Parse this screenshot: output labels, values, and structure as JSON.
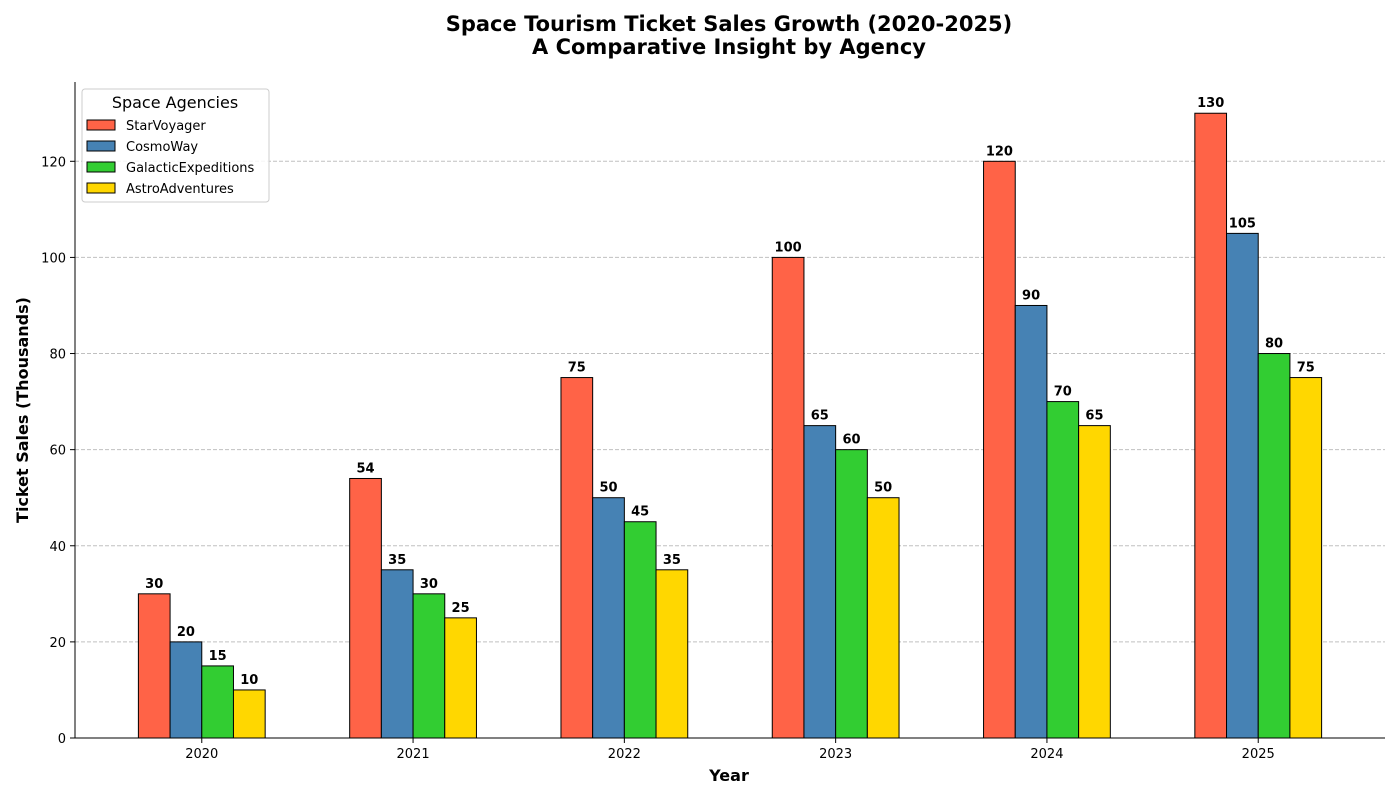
{
  "chart_data": {
    "type": "bar",
    "title": "Space Tourism Ticket Sales Growth (2020-2025)",
    "subtitle": "A Comparative Insight by Agency",
    "xlabel": "Year",
    "ylabel": "Ticket Sales (Thousands)",
    "categories": [
      "2020",
      "2021",
      "2022",
      "2023",
      "2024",
      "2025"
    ],
    "ylim": [
      0,
      136.5
    ],
    "yticks": [
      0,
      20,
      40,
      60,
      80,
      100,
      120
    ],
    "grid": "y-dashed",
    "legend": {
      "title": "Space Agencies",
      "placement": "top-left"
    },
    "series": [
      {
        "name": "StarVoyager",
        "color": "#ff6347",
        "values": [
          30,
          54,
          75,
          100,
          120,
          130
        ]
      },
      {
        "name": "CosmoWay",
        "color": "#4682b4",
        "values": [
          20,
          35,
          50,
          65,
          90,
          105
        ]
      },
      {
        "name": "GalacticExpeditions",
        "color": "#32cd32",
        "values": [
          15,
          30,
          45,
          60,
          70,
          80
        ]
      },
      {
        "name": "AstroAdventures",
        "color": "#ffd700",
        "values": [
          10,
          25,
          35,
          50,
          65,
          75
        ]
      }
    ]
  }
}
